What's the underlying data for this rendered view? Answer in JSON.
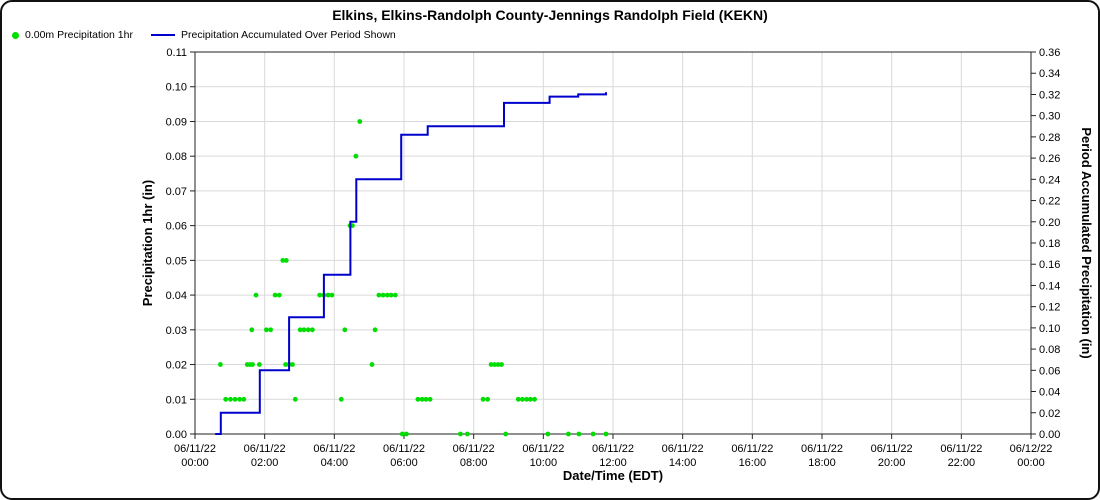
{
  "header": {
    "title": "Elkins, Elkins-Randolph County-Jennings Randolph Field (KEKN)"
  },
  "legend": {
    "items": [
      {
        "label": "0.00m Precipitation 1hr",
        "marker": "dot",
        "color": "#00dd00"
      },
      {
        "label": "Precipitation Accumulated Over Period Shown",
        "marker": "line",
        "color": "#0000cd"
      }
    ]
  },
  "chart_data": {
    "type": "scatter+line",
    "title": "Elkins, Elkins-Randolph County-Jennings Randolph Field (KEKN)",
    "grid": true,
    "grid_color": "#d9d9d9",
    "x_axis": {
      "label": "Date/Time (EDT)",
      "min": 0,
      "max": 24,
      "tick_step": 2,
      "ticks": [
        {
          "date": "06/11/22",
          "time": "00:00"
        },
        {
          "date": "06/11/22",
          "time": "02:00"
        },
        {
          "date": "06/11/22",
          "time": "04:00"
        },
        {
          "date": "06/11/22",
          "time": "06:00"
        },
        {
          "date": "06/11/22",
          "time": "08:00"
        },
        {
          "date": "06/11/22",
          "time": "10:00"
        },
        {
          "date": "06/11/22",
          "time": "12:00"
        },
        {
          "date": "06/11/22",
          "time": "14:00"
        },
        {
          "date": "06/11/22",
          "time": "16:00"
        },
        {
          "date": "06/11/22",
          "time": "18:00"
        },
        {
          "date": "06/11/22",
          "time": "20:00"
        },
        {
          "date": "06/11/22",
          "time": "22:00"
        },
        {
          "date": "06/12/22",
          "time": "00:00"
        }
      ]
    },
    "y_left": {
      "label": "Precipitation 1hr (in)",
      "min": 0,
      "max": 0.11,
      "step": 0.01,
      "tick_labels": [
        "0.00",
        "0.01",
        "0.02",
        "0.03",
        "0.04",
        "0.05",
        "0.06",
        "0.07",
        "0.08",
        "0.09",
        "0.10",
        "0.11"
      ]
    },
    "y_right": {
      "label": "Period Accumulated Precipitation (in)",
      "min": 0,
      "max": 0.36,
      "step": 0.02,
      "tick_labels": [
        "0.00",
        "0.02",
        "0.04",
        "0.06",
        "0.08",
        "0.10",
        "0.12",
        "0.14",
        "0.16",
        "0.18",
        "0.20",
        "0.22",
        "0.24",
        "0.26",
        "0.28",
        "0.30",
        "0.32",
        "0.34",
        "0.36"
      ]
    },
    "series": [
      {
        "name": "0.00m Precipitation 1hr",
        "type": "scatter",
        "axis": "left",
        "color": "#00dd00",
        "points": [
          [
            0.73,
            0.02
          ],
          [
            0.88,
            0.01
          ],
          [
            1.02,
            0.01
          ],
          [
            1.15,
            0.01
          ],
          [
            1.28,
            0.01
          ],
          [
            1.4,
            0.01
          ],
          [
            1.5,
            0.02
          ],
          [
            1.58,
            0.02
          ],
          [
            1.65,
            0.02
          ],
          [
            1.63,
            0.03
          ],
          [
            1.75,
            0.04
          ],
          [
            1.85,
            0.02
          ],
          [
            2.05,
            0.03
          ],
          [
            2.17,
            0.03
          ],
          [
            2.3,
            0.04
          ],
          [
            2.42,
            0.04
          ],
          [
            2.52,
            0.05
          ],
          [
            2.62,
            0.05
          ],
          [
            2.6,
            0.02
          ],
          [
            2.7,
            0.02
          ],
          [
            2.8,
            0.02
          ],
          [
            2.88,
            0.01
          ],
          [
            3.02,
            0.03
          ],
          [
            3.13,
            0.03
          ],
          [
            3.25,
            0.03
          ],
          [
            3.37,
            0.03
          ],
          [
            3.58,
            0.04
          ],
          [
            3.7,
            0.04
          ],
          [
            3.82,
            0.04
          ],
          [
            3.93,
            0.04
          ],
          [
            4.2,
            0.01
          ],
          [
            4.3,
            0.03
          ],
          [
            4.45,
            0.06
          ],
          [
            4.52,
            0.06
          ],
          [
            4.62,
            0.08
          ],
          [
            4.73,
            0.09
          ],
          [
            5.08,
            0.02
          ],
          [
            5.17,
            0.03
          ],
          [
            5.28,
            0.04
          ],
          [
            5.4,
            0.04
          ],
          [
            5.52,
            0.04
          ],
          [
            5.63,
            0.04
          ],
          [
            5.75,
            0.04
          ],
          [
            5.95,
            0.0
          ],
          [
            6.07,
            0.0
          ],
          [
            6.4,
            0.01
          ],
          [
            6.52,
            0.01
          ],
          [
            6.63,
            0.01
          ],
          [
            6.75,
            0.01
          ],
          [
            7.62,
            0.0
          ],
          [
            7.82,
            0.0
          ],
          [
            8.27,
            0.01
          ],
          [
            8.4,
            0.01
          ],
          [
            8.5,
            0.02
          ],
          [
            8.6,
            0.02
          ],
          [
            8.7,
            0.02
          ],
          [
            8.8,
            0.02
          ],
          [
            8.92,
            0.0
          ],
          [
            9.28,
            0.01
          ],
          [
            9.4,
            0.01
          ],
          [
            9.52,
            0.01
          ],
          [
            9.63,
            0.01
          ],
          [
            9.75,
            0.01
          ],
          [
            10.13,
            0.0
          ],
          [
            10.72,
            0.0
          ],
          [
            11.02,
            0.0
          ],
          [
            11.43,
            0.0
          ],
          [
            11.8,
            0.0
          ]
        ]
      },
      {
        "name": "Precipitation Accumulated Over Period Shown",
        "type": "line",
        "axis": "right",
        "color": "#0000cd",
        "points": [
          [
            0.58,
            0.0
          ],
          [
            0.7,
            0.0
          ],
          [
            0.74,
            0.02
          ],
          [
            1.8,
            0.02
          ],
          [
            1.86,
            0.06
          ],
          [
            2.62,
            0.06
          ],
          [
            2.7,
            0.11
          ],
          [
            3.62,
            0.11
          ],
          [
            3.7,
            0.15
          ],
          [
            4.42,
            0.15
          ],
          [
            4.46,
            0.2
          ],
          [
            4.58,
            0.2
          ],
          [
            4.63,
            0.24
          ],
          [
            5.85,
            0.24
          ],
          [
            5.92,
            0.282
          ],
          [
            6.62,
            0.282
          ],
          [
            6.68,
            0.29
          ],
          [
            8.8,
            0.29
          ],
          [
            8.87,
            0.312
          ],
          [
            10.12,
            0.312
          ],
          [
            10.18,
            0.318
          ],
          [
            11.0,
            0.32
          ],
          [
            11.8,
            0.322
          ]
        ]
      }
    ]
  }
}
